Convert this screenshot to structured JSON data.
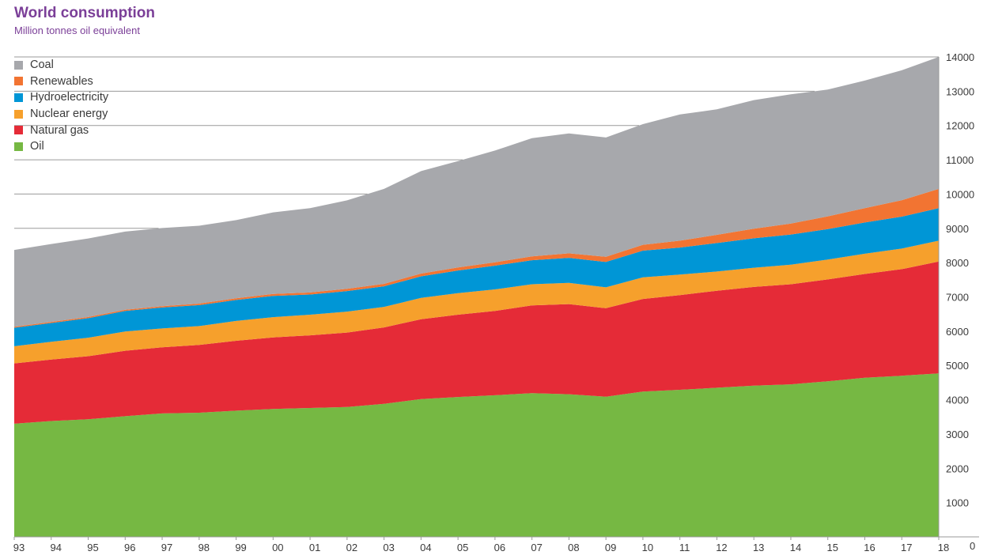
{
  "title": "World consumption",
  "subtitle": "Million tonnes oil equivalent",
  "chart_data": {
    "type": "area",
    "stacked": true,
    "title": "World consumption",
    "subtitle": "Million tonnes oil equivalent",
    "xlabel": "",
    "ylabel": "",
    "ylim": [
      0,
      14000
    ],
    "y_ticks": [
      "0",
      "1000",
      "2000",
      "3000",
      "4000",
      "5000",
      "6000",
      "7000",
      "8000",
      "9000",
      "10000",
      "11000",
      "12000",
      "13000",
      "14000"
    ],
    "y_axis_position": "right",
    "grid": "horizontal",
    "legend_position": "top-left",
    "x": [
      "93",
      "94",
      "95",
      "96",
      "97",
      "98",
      "99",
      "00",
      "01",
      "02",
      "03",
      "04",
      "05",
      "06",
      "07",
      "08",
      "09",
      "10",
      "11",
      "12",
      "13",
      "14",
      "15",
      "16",
      "17",
      "18"
    ],
    "series": [
      {
        "name": "Oil",
        "color": "#76b843",
        "values": [
          3300,
          3380,
          3430,
          3520,
          3600,
          3620,
          3680,
          3730,
          3760,
          3790,
          3880,
          4020,
          4080,
          4130,
          4190,
          4160,
          4090,
          4240,
          4290,
          4350,
          4410,
          4450,
          4540,
          4640,
          4700,
          4770
        ]
      },
      {
        "name": "Natural gas",
        "color": "#e52b37",
        "values": [
          1760,
          1790,
          1840,
          1910,
          1930,
          1980,
          2040,
          2090,
          2120,
          2170,
          2230,
          2330,
          2400,
          2460,
          2560,
          2630,
          2580,
          2700,
          2760,
          2830,
          2880,
          2920,
          2970,
          3030,
          3110,
          3260
        ]
      },
      {
        "name": "Nuclear energy",
        "color": "#f6a02c",
        "values": [
          500,
          520,
          540,
          560,
          550,
          550,
          580,
          590,
          600,
          610,
          600,
          620,
          630,
          630,
          620,
          620,
          610,
          630,
          600,
          560,
          560,
          570,
          580,
          590,
          600,
          610
        ]
      },
      {
        "name": "Hydroelectricity",
        "color": "#0096d6",
        "values": [
          540,
          550,
          570,
          600,
          610,
          610,
          610,
          620,
          590,
          600,
          600,
          630,
          660,
          690,
          700,
          730,
          740,
          780,
          790,
          830,
          860,
          880,
          890,
          910,
          930,
          950
        ]
      },
      {
        "name": "Renewables",
        "color": "#f27432",
        "values": [
          30,
          32,
          34,
          36,
          40,
          45,
          50,
          55,
          60,
          65,
          70,
          80,
          90,
          100,
          110,
          130,
          150,
          170,
          200,
          240,
          280,
          320,
          370,
          420,
          480,
          560
        ]
      },
      {
        "name": "Coal",
        "color": "#a7a8ac",
        "values": [
          2240,
          2270,
          2290,
          2280,
          2280,
          2270,
          2280,
          2380,
          2460,
          2580,
          2770,
          2990,
          3100,
          3260,
          3450,
          3500,
          3480,
          3520,
          3680,
          3660,
          3750,
          3770,
          3700,
          3720,
          3790,
          3850
        ]
      }
    ]
  }
}
